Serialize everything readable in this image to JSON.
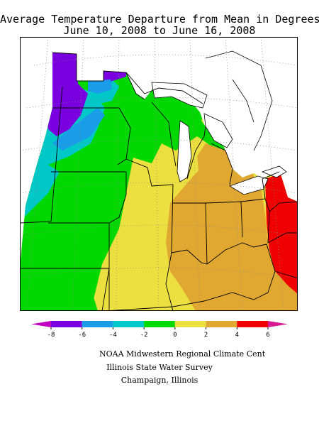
{
  "title_line1": "Average Temperature Departure from Mean in Degrees F",
  "title_line2": "June 10, 2008 to June 16, 2008",
  "legend": {
    "ticks": [
      "-8",
      "-6",
      "-4",
      "-2",
      "0",
      "2",
      "4",
      "6"
    ],
    "bins": [
      {
        "range": "< -8",
        "color": "#c000c0"
      },
      {
        "range": "-8 to -6",
        "color": "#7a00e0"
      },
      {
        "range": "-6 to -4",
        "color": "#1a9de8"
      },
      {
        "range": "-4 to -2",
        "color": "#00c8c8"
      },
      {
        "range": "-2 to 0",
        "color": "#00d800"
      },
      {
        "range": "0 to 2",
        "color": "#ece040"
      },
      {
        "range": "2 to 4",
        "color": "#e0a830"
      },
      {
        "range": "4 to 6",
        "color": "#f00000"
      },
      {
        "range": "> 6",
        "color": "#d81890"
      }
    ]
  },
  "credits": {
    "line1": "NOAA Midwestern Regional Climate Cent",
    "line2": "Illinois State Water Survey",
    "line3": "Champaign, Illinois"
  }
}
